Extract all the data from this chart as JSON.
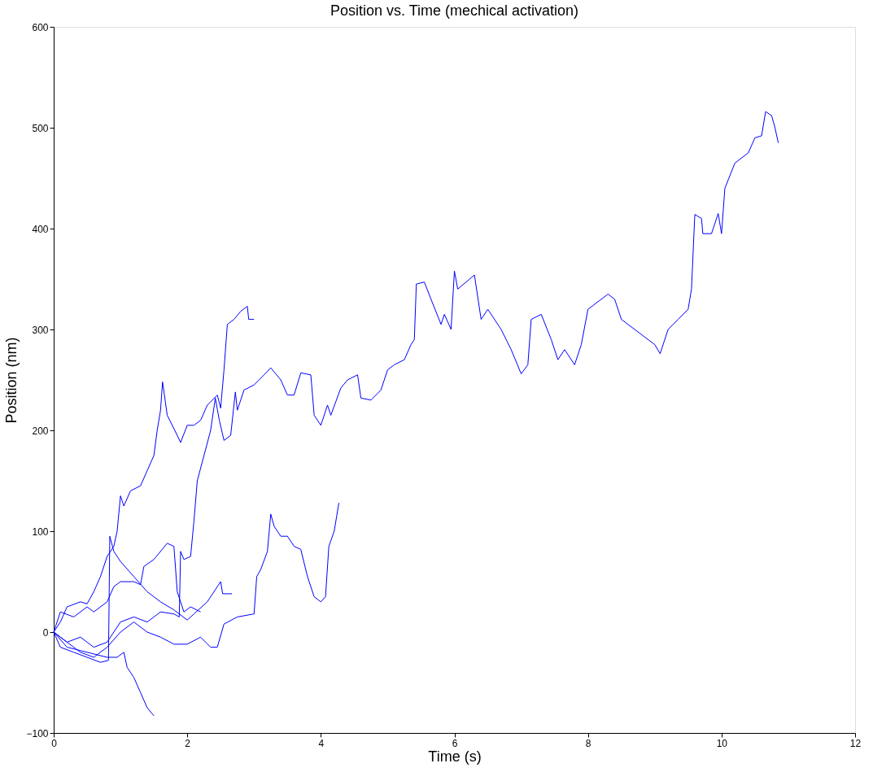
{
  "chart_data": {
    "type": "line",
    "title": "Position vs. Time (mechical activation)",
    "xlabel": "Time (s)",
    "ylabel": "Position (nm)",
    "xlim": [
      0,
      12
    ],
    "xticks": [
      0,
      2,
      4,
      6,
      8,
      10,
      12
    ],
    "ylim": [
      -100,
      600
    ],
    "yticks": [
      -100,
      0,
      100,
      200,
      300,
      400,
      500,
      600
    ],
    "grid": false,
    "legend": false,
    "marker": "none",
    "line_style": "solid",
    "series": [
      {
        "color": "#0000ff",
        "x": [
          0,
          0.1,
          0.2,
          0.4,
          0.5,
          0.6,
          0.7,
          0.8,
          0.9,
          0.95,
          1.0,
          1.05,
          1.15,
          1.3,
          1.4,
          1.5,
          1.55,
          1.6,
          1.63,
          1.7,
          1.85,
          1.9,
          2.0,
          2.1,
          2.2,
          2.3,
          2.45,
          2.5,
          2.55,
          2.6,
          2.7,
          2.8,
          2.9,
          2.92,
          3.0
        ],
        "values": [
          0,
          10,
          25,
          30,
          28,
          40,
          55,
          75,
          85,
          100,
          135,
          125,
          140,
          145,
          160,
          175,
          200,
          220,
          248,
          215,
          195,
          188,
          205,
          205,
          210,
          225,
          235,
          222,
          260,
          305,
          310,
          318,
          323,
          310,
          310
        ]
      },
      {
        "color": "#0000ff",
        "x": [
          0,
          0.2,
          0.4,
          0.6,
          0.8,
          1.0,
          1.2,
          1.4,
          1.6,
          1.8,
          1.88,
          1.9,
          1.95,
          2.05,
          2.1,
          2.15,
          2.25,
          2.35,
          2.42,
          2.48,
          2.55,
          2.65,
          2.72,
          2.75,
          2.85,
          3.0,
          3.15,
          3.25,
          3.4,
          3.5,
          3.6,
          3.7,
          3.85,
          3.9,
          4.0,
          4.1,
          4.15,
          4.3,
          4.4,
          4.55,
          4.6,
          4.75,
          4.9,
          5.0,
          5.1,
          5.25,
          5.35,
          5.4,
          5.43,
          5.55,
          5.65,
          5.8,
          5.85,
          5.95,
          6.0,
          6.05,
          6.3,
          6.4,
          6.5,
          6.7,
          6.85,
          7.0,
          7.1,
          7.15,
          7.3,
          7.45,
          7.55,
          7.65,
          7.8,
          7.9,
          8.0,
          8.3,
          8.4,
          8.5,
          8.7,
          9.0,
          9.08,
          9.2,
          9.35,
          9.5,
          9.55,
          9.6,
          9.7,
          9.72,
          9.85,
          9.95,
          10.0,
          10.05,
          10.2,
          10.4,
          10.5,
          10.6,
          10.66,
          10.75,
          10.8,
          10.85
        ],
        "values": [
          0,
          -10,
          -5,
          -15,
          -10,
          10,
          15,
          10,
          20,
          18,
          15,
          80,
          72,
          75,
          110,
          150,
          175,
          200,
          232,
          210,
          190,
          195,
          238,
          220,
          240,
          245,
          255,
          262,
          250,
          235,
          235,
          257,
          255,
          215,
          205,
          225,
          215,
          242,
          250,
          255,
          232,
          230,
          240,
          260,
          265,
          270,
          285,
          290,
          345,
          347,
          330,
          305,
          315,
          300,
          358,
          340,
          354,
          310,
          320,
          300,
          280,
          256,
          265,
          310,
          315,
          290,
          270,
          280,
          265,
          285,
          320,
          335,
          330,
          310,
          300,
          285,
          276,
          300,
          310,
          320,
          340,
          414,
          410,
          395,
          395,
          415,
          395,
          440,
          465,
          475,
          490,
          492,
          516,
          512,
          500,
          485
        ]
      },
      {
        "color": "#0000ff",
        "x": [
          0,
          0.1,
          0.3,
          0.5,
          0.7,
          0.82,
          0.84,
          0.9,
          1.0,
          1.2,
          1.4,
          1.6,
          1.8,
          2.0,
          2.1,
          2.3,
          2.5,
          2.53,
          2.67
        ],
        "values": [
          0,
          -15,
          -20,
          -25,
          -30,
          -28,
          95,
          80,
          70,
          55,
          40,
          30,
          22,
          12,
          18,
          30,
          50,
          38,
          38
        ]
      },
      {
        "color": "#0000ff",
        "x": [
          0,
          0.1,
          0.3,
          0.5,
          0.6,
          0.8,
          0.9,
          1.0,
          1.2,
          1.3,
          1.35,
          1.5,
          1.7,
          1.8,
          1.85,
          1.95,
          2.05,
          2.2
        ],
        "values": [
          0,
          20,
          15,
          25,
          20,
          30,
          45,
          50,
          50,
          47,
          65,
          72,
          88,
          85,
          40,
          20,
          25,
          20
        ]
      },
      {
        "color": "#0000ff",
        "x": [
          0,
          0.2,
          0.4,
          0.6,
          0.8,
          1.0,
          1.2,
          1.4,
          1.6,
          1.8,
          2.0,
          2.2,
          2.35,
          2.45,
          2.55,
          2.75,
          3.0,
          3.04,
          3.1,
          3.2,
          3.25,
          3.3,
          3.4,
          3.5,
          3.6,
          3.7,
          3.8,
          3.9,
          4.0,
          4.07,
          4.12,
          4.2,
          4.27
        ],
        "values": [
          0,
          -10,
          -20,
          -25,
          -15,
          0,
          10,
          0,
          -5,
          -12,
          -12,
          -5,
          -15,
          -15,
          8,
          15,
          18,
          55,
          62,
          80,
          117,
          105,
          95,
          95,
          85,
          82,
          55,
          35,
          30,
          35,
          85,
          100,
          128
        ]
      },
      {
        "color": "#0000ff",
        "x": [
          0,
          0.2,
          0.5,
          0.8,
          0.95,
          1.05,
          1.1,
          1.2,
          1.3,
          1.4,
          1.5
        ],
        "values": [
          0,
          -15,
          -20,
          -25,
          -25,
          -20,
          -35,
          -45,
          -60,
          -75,
          -83
        ]
      }
    ]
  }
}
